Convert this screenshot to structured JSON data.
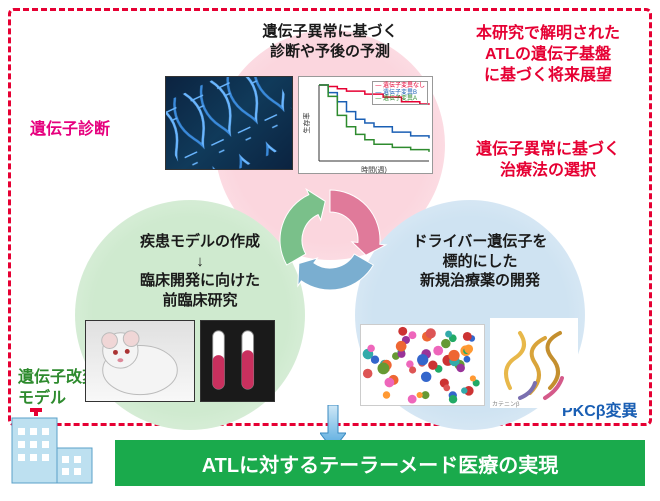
{
  "nodes": {
    "top": {
      "title": "遺伝子異常に基づく\n診断や予後の予測"
    },
    "left": {
      "title": "疾患モデルの作成\n↓\n臨床開発に向けた\n前臨床研究"
    },
    "right": {
      "title": "ドライバー遺伝子を\n標的にした\n新規治療薬の開発"
    }
  },
  "labels": {
    "diag": "遺伝子診断",
    "prospect": "本研究で解明された\nATLの遺伝子基盤\nに基づく将来展望",
    "therapy": "遺伝子異常に基づく\n治療法の選択",
    "model": "遺伝子改変\nモデル",
    "pkc": "PKCβ変異"
  },
  "banner": "ATLに対するテーラーメード医療の実現",
  "colors": {
    "red": "#e60033",
    "magenta": "#e6007e",
    "green": "#2e8b2e",
    "blue": "#1a5fb4",
    "banner": "#1aaa4c",
    "circ_pink": "#fbd6de",
    "circ_green": "#cfeacf",
    "circ_blue": "#cfe3f2",
    "cycle_arrows": [
      "#e07a9a",
      "#7aaed0",
      "#7ac08a"
    ]
  },
  "chart": {
    "type": "survival-curve",
    "xlabel": "時間(週)",
    "ylabel": "生存率",
    "xlim": [
      0,
      12
    ],
    "ylim": [
      0,
      1
    ],
    "label_fontsize": 7,
    "legend_pos": "top-right",
    "series": [
      {
        "name": "遺伝子変異なし",
        "color": "#e60033",
        "points": [
          [
            0,
            1.0
          ],
          [
            1,
            0.98
          ],
          [
            2,
            0.95
          ],
          [
            3,
            0.92
          ],
          [
            5,
            0.88
          ],
          [
            7,
            0.84
          ],
          [
            9,
            0.78
          ],
          [
            11,
            0.75
          ],
          [
            12,
            0.74
          ]
        ]
      },
      {
        "name": "遺伝子変異B",
        "color": "#1a5fb4",
        "points": [
          [
            0,
            1.0
          ],
          [
            1,
            0.9
          ],
          [
            2,
            0.78
          ],
          [
            3,
            0.65
          ],
          [
            4,
            0.55
          ],
          [
            5,
            0.5
          ],
          [
            6,
            0.45
          ],
          [
            8,
            0.38
          ],
          [
            10,
            0.33
          ],
          [
            12,
            0.3
          ]
        ]
      },
      {
        "name": "遺伝子変異A",
        "color": "#2e8b2e",
        "points": [
          [
            0,
            1.0
          ],
          [
            1,
            0.85
          ],
          [
            2,
            0.6
          ],
          [
            3,
            0.45
          ],
          [
            4,
            0.35
          ],
          [
            5,
            0.28
          ],
          [
            6,
            0.22
          ],
          [
            8,
            0.18
          ],
          [
            10,
            0.15
          ],
          [
            12,
            0.12
          ]
        ]
      }
    ]
  },
  "cycle": {
    "type": "cycle-arrows",
    "n_arrows": 3,
    "colors": [
      "#e07a9a",
      "#7aaed0",
      "#7ac08a"
    ]
  }
}
